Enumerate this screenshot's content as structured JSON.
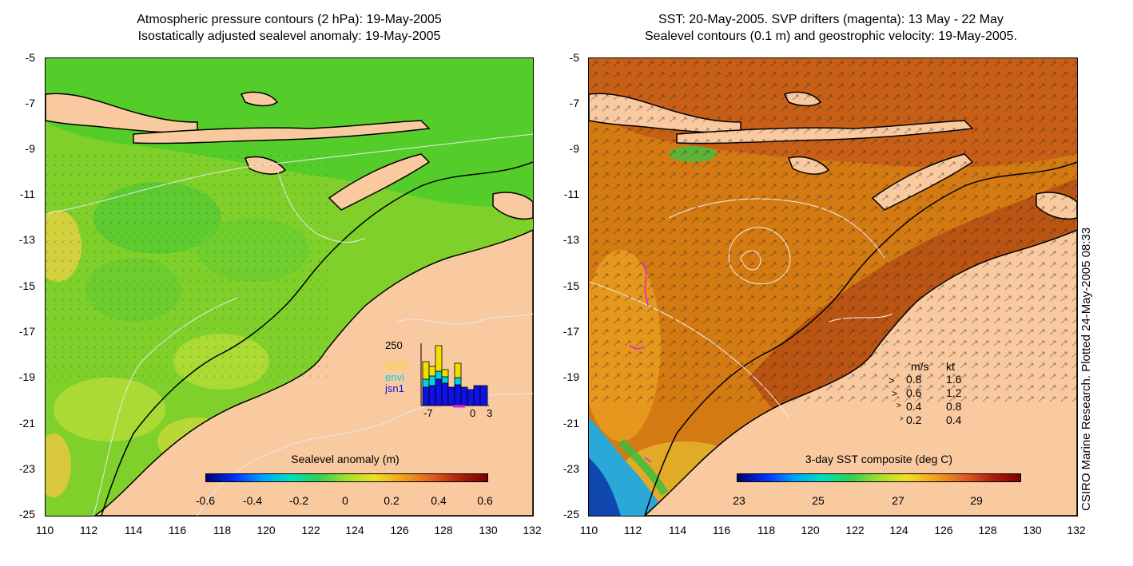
{
  "left_panel": {
    "title_line1": "Atmospheric pressure contours (2 hPa): 19-May-2005",
    "title_line2": "Isostatically adjusted sealevel anomaly: 19-May-2005",
    "colorbar_label": "Sealevel anomaly (m)",
    "colorbar_ticks": [
      "-0.6",
      "-0.4",
      "-0.2",
      "0",
      "0.2",
      "0.4",
      "0.6"
    ],
    "inset": {
      "ymax_label": "250",
      "sat_labels": [
        "GFO",
        "envi",
        "jsn1"
      ],
      "sat_colors": [
        "#f0e000",
        "#00d0e0",
        "#1010e0"
      ],
      "x_ticks": [
        "-7",
        "0",
        "3"
      ]
    }
  },
  "right_panel": {
    "title_line1": "SST: 20-May-2005. SVP drifters (magenta): 13 May - 22 May",
    "title_line2": "Sealevel contours (0.1 m) and geostrophic velocity: 19-May-2005.",
    "colorbar_label": "3-day SST composite (deg C)",
    "colorbar_ticks": [
      "23",
      "25",
      "27",
      "29"
    ],
    "velocity_legend": {
      "header_ms": "m/s",
      "header_kt": "kt",
      "rows": [
        {
          "ms": "0.8",
          "kt": "1.6"
        },
        {
          "ms": "0.6",
          "kt": "1.2"
        },
        {
          "ms": "0.4",
          "kt": "0.8"
        },
        {
          "ms": "0.2",
          "kt": "0.4"
        }
      ]
    }
  },
  "axes": {
    "y_ticks": [
      "-5",
      "-7",
      "-9",
      "-11",
      "-13",
      "-15",
      "-17",
      "-19",
      "-21",
      "-23",
      "-25"
    ],
    "x_ticks": [
      "110",
      "112",
      "114",
      "116",
      "118",
      "120",
      "122",
      "124",
      "126",
      "128",
      "130",
      "132"
    ]
  },
  "credit": "CSIRO Marine Research. Plotted 24-May-2005 08:33",
  "colors": {
    "land": "#f9c9a0",
    "sla_ocean": "#7ccf2a",
    "sst_ocean": "#d77a14"
  }
}
